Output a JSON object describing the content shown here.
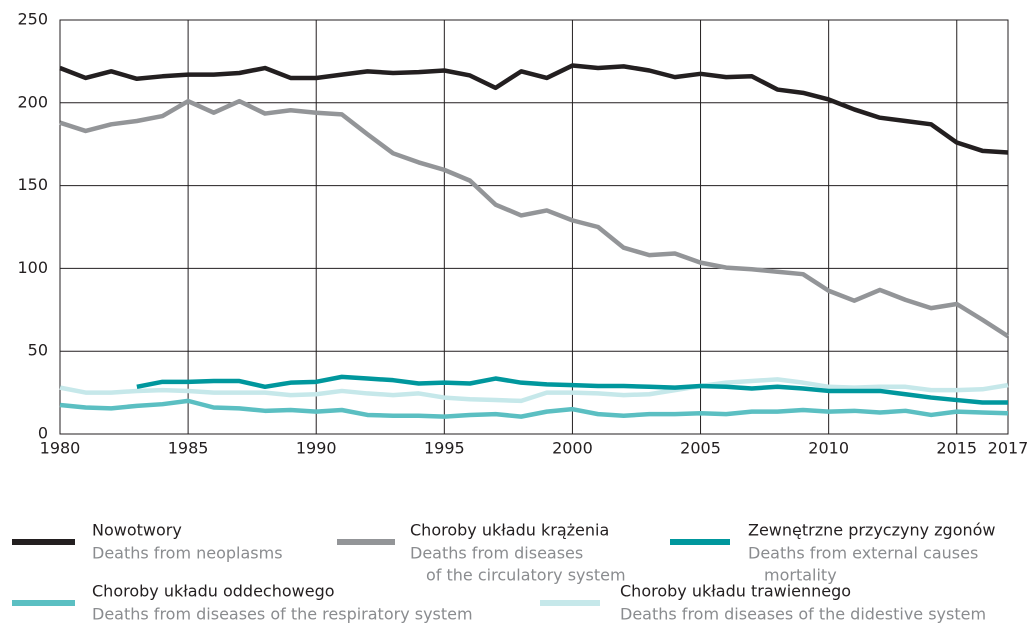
{
  "chart_data": {
    "type": "line",
    "x": [
      1980,
      1981,
      1982,
      1983,
      1984,
      1985,
      1986,
      1987,
      1988,
      1989,
      1990,
      1991,
      1992,
      1993,
      1994,
      1995,
      1996,
      1997,
      1998,
      1999,
      2000,
      2001,
      2002,
      2003,
      2004,
      2005,
      2006,
      2007,
      2008,
      2009,
      2010,
      2011,
      2012,
      2013,
      2014,
      2015,
      2016,
      2017
    ],
    "xlim": [
      1980,
      2017
    ],
    "xticks": [
      1980,
      1985,
      1990,
      1995,
      2000,
      2005,
      2010,
      2015,
      2017
    ],
    "ylim": [
      0,
      250
    ],
    "yticks": [
      0,
      50,
      100,
      150,
      200,
      250
    ],
    "grid": true,
    "series": [
      {
        "name": "Nowotwory",
        "description": [
          "Deaths from neoplasms"
        ],
        "color": "#231f20",
        "values": [
          221,
          215,
          219,
          214.5,
          216,
          217,
          217,
          218,
          221,
          215,
          215,
          217,
          219,
          218,
          218.5,
          219.5,
          216.5,
          209,
          219,
          215,
          222.5,
          221,
          222,
          219.5,
          215.5,
          217.5,
          215.5,
          216,
          208,
          206,
          202,
          196,
          191,
          189,
          187,
          176,
          171,
          170
        ]
      },
      {
        "name": "Choroby układu krążenia",
        "description": [
          "Deaths from diseases",
          "of the circulatory system"
        ],
        "color": "#939598",
        "values": [
          188,
          183,
          187,
          189,
          192,
          201,
          194,
          201,
          193.5,
          195.5,
          194,
          193,
          181,
          169.5,
          164,
          159.5,
          153,
          138.5,
          132,
          135,
          129,
          125,
          112.5,
          108,
          109,
          103.5,
          100.5,
          99.5,
          98,
          96.5,
          86.5,
          80.5,
          87,
          81,
          76,
          78.5,
          69,
          59
        ]
      },
      {
        "name": "Zewnętrzne przyczyny zgonów",
        "description": [
          "Deaths from external causes",
          "mortality"
        ],
        "color": "#00979d",
        "values": [
          null,
          null,
          null,
          28.5,
          31.5,
          31.5,
          32,
          32,
          28.5,
          31,
          31.5,
          34.5,
          33.5,
          32.5,
          30.5,
          31,
          30.5,
          33.5,
          31,
          30,
          29.5,
          29,
          29,
          28.5,
          28,
          29,
          28.5,
          27.5,
          28.5,
          27.5,
          26,
          26,
          26,
          24,
          22,
          20.5,
          19,
          19
        ]
      },
      {
        "name": "Choroby układu oddechowego",
        "description": [
          "Deaths from diseases of the respiratory system"
        ],
        "color": "#5bbfc2",
        "values": [
          17.5,
          16,
          15.5,
          17,
          18,
          20,
          16,
          15.5,
          14,
          14.5,
          13.5,
          14.5,
          11.5,
          11,
          11,
          10.5,
          11.5,
          12,
          10.5,
          13.5,
          15,
          12,
          11,
          12,
          12,
          12.5,
          12,
          13.5,
          13.5,
          14.5,
          13.5,
          14,
          13,
          14,
          11.5,
          13.5,
          13,
          12.5
        ]
      },
      {
        "name": "Choroby układu trawiennego",
        "description": [
          "Deaths from diseases of the didestive system"
        ],
        "color": "#c6e8ea",
        "values": [
          28,
          25,
          25,
          26,
          26.5,
          26,
          25,
          25,
          25,
          23.5,
          24,
          26,
          24.5,
          23.5,
          24.5,
          22,
          21,
          20.5,
          20,
          25,
          25,
          24.5,
          23.5,
          24,
          26.5,
          29,
          31,
          32,
          33,
          31,
          28.5,
          28,
          28.5,
          28.5,
          26.5,
          26.5,
          27,
          29.5
        ]
      }
    ]
  }
}
